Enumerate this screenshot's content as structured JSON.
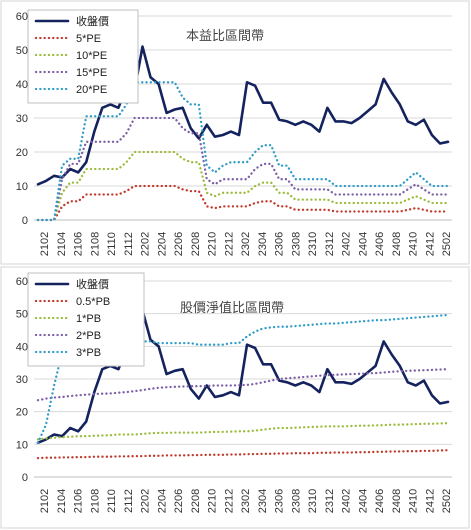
{
  "chart_data": [
    {
      "type": "line",
      "title": "本益比區間帶",
      "ylim": [
        0,
        60
      ],
      "yticks": [
        0,
        10,
        20,
        30,
        40,
        50,
        60
      ],
      "x_labels": [
        "2102",
        "2104",
        "2106",
        "2108",
        "2110",
        "2112",
        "2202",
        "2204",
        "2206",
        "2208",
        "2210",
        "2212",
        "2302",
        "2304",
        "2306",
        "2308",
        "2310",
        "2312",
        "2402",
        "2404",
        "2406",
        "2408",
        "2410",
        "2412",
        "2502"
      ],
      "grid": true,
      "legend_position": "top-left",
      "series": [
        {
          "name": "收盤價",
          "color": "#14235e",
          "style": "solid",
          "values": [
            10.5,
            11.5,
            13,
            12.5,
            15,
            14,
            17,
            26,
            33,
            34,
            33,
            39,
            38,
            51,
            42,
            40,
            31.5,
            32.5,
            33,
            27,
            24,
            28,
            24.5,
            25,
            26,
            25,
            40.5,
            39.5,
            34.5,
            34.5,
            29.5,
            29,
            28,
            29,
            28,
            26,
            33,
            29,
            29,
            28.5,
            30,
            32,
            34,
            41.5,
            37.5,
            34,
            29,
            28,
            29.5,
            25,
            22.5,
            23
          ]
        },
        {
          "name": "5*PE",
          "color": "#c0392b",
          "style": "dot",
          "values": [
            0,
            0,
            0,
            4,
            5.5,
            5.5,
            7.5,
            7.5,
            7.5,
            7.5,
            7.5,
            8.5,
            10,
            10,
            10,
            10,
            10,
            10,
            9,
            8.5,
            8.5,
            4,
            3.5,
            4,
            4,
            4,
            4,
            5,
            5.5,
            5.5,
            4,
            4,
            3,
            3,
            3,
            3,
            3,
            2.5,
            2.5,
            2.5,
            2.5,
            2.5,
            2.5,
            2.5,
            2.5,
            2.5,
            3,
            3.5,
            3,
            2.5,
            2.5,
            2.5
          ]
        },
        {
          "name": "10*PE",
          "color": "#9bbb3b",
          "style": "dot",
          "values": [
            0,
            0,
            0,
            8,
            11,
            11,
            15,
            15,
            15,
            15,
            15,
            17,
            20,
            20,
            20,
            20,
            20,
            20,
            18,
            17,
            17,
            8,
            7,
            8,
            8,
            8,
            8,
            10,
            11,
            11,
            8,
            8,
            6,
            6,
            6,
            6,
            6,
            5,
            5,
            5,
            5,
            5,
            5,
            5,
            5,
            5,
            6,
            7,
            6,
            5,
            5,
            5
          ]
        },
        {
          "name": "15*PE",
          "color": "#7d5fa8",
          "style": "dot",
          "values": [
            0,
            0,
            0,
            12,
            16.5,
            16.5,
            23,
            23,
            23,
            23,
            23,
            25.5,
            30,
            30,
            30,
            30,
            30,
            30,
            27,
            25.5,
            25.5,
            12,
            10.5,
            12,
            12,
            12,
            12,
            15,
            16.5,
            16.5,
            12,
            12,
            9,
            9,
            9,
            9,
            9,
            7.5,
            7.5,
            7.5,
            7.5,
            7.5,
            7.5,
            7.5,
            7.5,
            7.5,
            9,
            10.5,
            9,
            7.5,
            7.5,
            7.5
          ]
        },
        {
          "name": "20*PE",
          "color": "#2e9cc7",
          "style": "dot",
          "values": [
            0,
            0,
            0,
            16,
            18,
            18,
            30.5,
            30.5,
            30.5,
            30.5,
            30.5,
            34,
            40.5,
            40.5,
            40.5,
            40.5,
            40.5,
            40.5,
            36,
            34,
            34,
            16,
            14,
            16,
            17,
            17,
            17,
            20,
            22,
            22,
            16,
            16,
            12,
            12,
            12,
            12,
            12,
            10,
            10,
            10,
            10,
            10,
            10,
            10,
            10,
            10,
            12,
            14,
            12,
            10,
            10,
            10
          ]
        }
      ]
    },
    {
      "type": "line",
      "title": "股價淨值比區間帶",
      "ylim": [
        0,
        60
      ],
      "yticks": [
        0,
        10,
        20,
        30,
        40,
        50,
        60
      ],
      "x_labels": [
        "2102",
        "2104",
        "2106",
        "2108",
        "2110",
        "2112",
        "2202",
        "2204",
        "2206",
        "2208",
        "2210",
        "2212",
        "2302",
        "2304",
        "2306",
        "2308",
        "2310",
        "2312",
        "2402",
        "2404",
        "2406",
        "2408",
        "2410",
        "2412",
        "2502"
      ],
      "grid": true,
      "legend_position": "top-left",
      "series": [
        {
          "name": "收盤價",
          "color": "#14235e",
          "style": "solid",
          "values": [
            10.5,
            11.5,
            13,
            12.5,
            15,
            14,
            17,
            26,
            33,
            34,
            33,
            39,
            38,
            51,
            42,
            40,
            31.5,
            32.5,
            33,
            27,
            24,
            28,
            24.5,
            25,
            26,
            25,
            40.5,
            39.5,
            34.5,
            34.5,
            29.5,
            29,
            28,
            29,
            28,
            26,
            33,
            29,
            29,
            28.5,
            30,
            32,
            34,
            41.5,
            37.5,
            34,
            29,
            28,
            29.5,
            25,
            22.5,
            23
          ]
        },
        {
          "name": "0.5*PB",
          "color": "#c0392b",
          "style": "dot",
          "values": [
            5.8,
            5.9,
            5.9,
            6,
            6,
            6.1,
            6.1,
            6.2,
            6.2,
            6.2,
            6.3,
            6.3,
            6.4,
            6.4,
            6.5,
            6.5,
            6.6,
            6.6,
            6.6,
            6.7,
            6.7,
            6.8,
            6.8,
            6.8,
            6.9,
            6.9,
            7,
            7,
            7.1,
            7.1,
            7.2,
            7.2,
            7.3,
            7.3,
            7.3,
            7.4,
            7.4,
            7.5,
            7.5,
            7.5,
            7.6,
            7.6,
            7.7,
            7.7,
            7.8,
            7.8,
            7.9,
            7.9,
            8,
            8,
            8.1,
            8.2
          ]
        },
        {
          "name": "1*PB",
          "color": "#9bbb3b",
          "style": "dot",
          "values": [
            11.5,
            11.8,
            12,
            12.2,
            12.3,
            12.5,
            12.5,
            12.6,
            12.7,
            12.8,
            13,
            13,
            13,
            13.2,
            13.4,
            13.5,
            13.5,
            13.6,
            13.6,
            13.6,
            13.6,
            13.7,
            13.8,
            13.8,
            13.9,
            14,
            14,
            14.2,
            14.5,
            14.8,
            15,
            15,
            15.1,
            15.2,
            15.3,
            15.4,
            15.5,
            15.5,
            15.5,
            15.6,
            15.7,
            15.7,
            15.8,
            15.9,
            16,
            16,
            16.1,
            16.2,
            16.3,
            16.3,
            16.4,
            16.5
          ]
        },
        {
          "name": "2*PB",
          "color": "#7d5fa8",
          "style": "dot",
          "values": [
            23.5,
            24,
            24.3,
            24.5,
            24.8,
            25,
            25.2,
            25.4,
            25.5,
            25.6,
            25.8,
            26,
            26.3,
            26.6,
            27,
            27.3,
            27.5,
            27.6,
            27.7,
            27.8,
            27.8,
            27.9,
            28,
            28,
            28,
            28.1,
            28.2,
            28.5,
            29,
            29.5,
            30,
            30.2,
            30.4,
            30.6,
            30.8,
            31,
            31.2,
            31.3,
            31.4,
            31.5,
            31.6,
            31.7,
            31.8,
            32,
            32.2,
            32.4,
            32.5,
            32.6,
            32.7,
            32.8,
            32.9,
            33
          ]
        },
        {
          "name": "3*PB",
          "color": "#2e9cc7",
          "style": "dot",
          "values": [
            10.5,
            16,
            28,
            38,
            40,
            41,
            42,
            42,
            42,
            42,
            42,
            42,
            42,
            41.5,
            41.5,
            41,
            41,
            41,
            41,
            41,
            40.5,
            40.5,
            40.5,
            40.5,
            41,
            41,
            43,
            44.5,
            45.5,
            45.8,
            46,
            46,
            46.2,
            46.4,
            46.6,
            46.8,
            47,
            47,
            47.2,
            47.4,
            47.6,
            47.8,
            48,
            48,
            48.2,
            48.4,
            48.6,
            48.8,
            49,
            49.2,
            49.4,
            49.6
          ]
        }
      ]
    }
  ]
}
